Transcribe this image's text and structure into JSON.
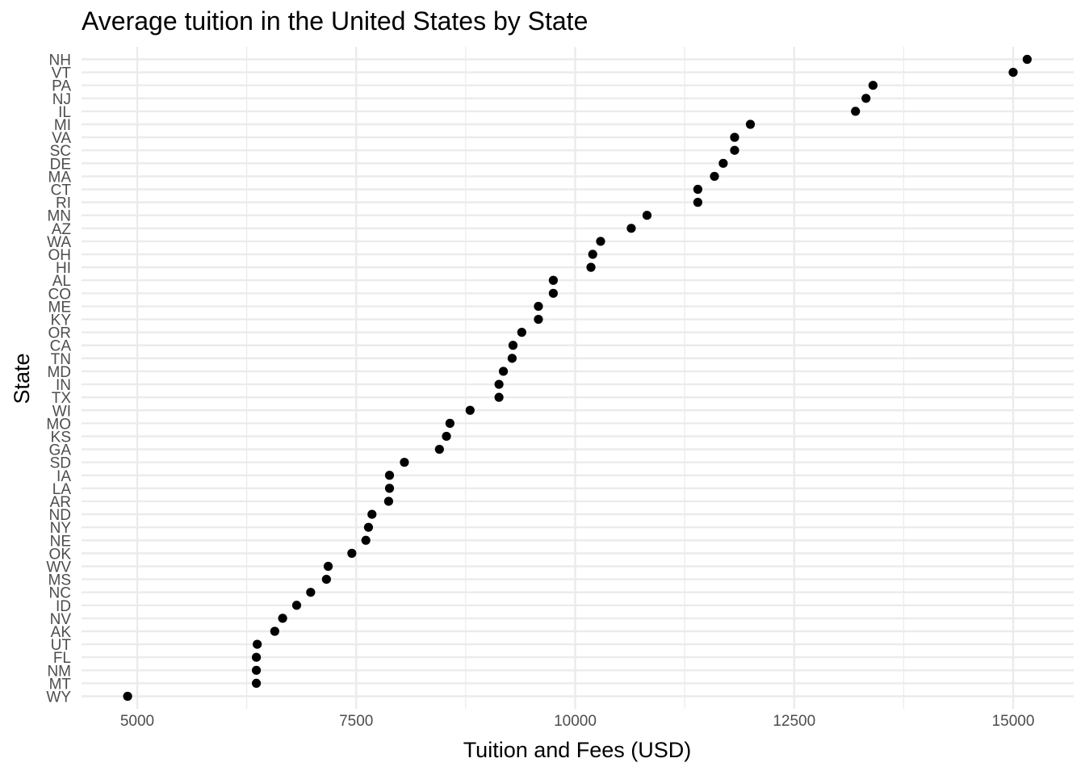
{
  "chart_data": {
    "type": "scatter",
    "title": "Average tuition in the United States by State",
    "xlabel": "Tuition and Fees (USD)",
    "ylabel": "State",
    "xlim": [
      4500,
      15500
    ],
    "x_ticks": [
      5000,
      7500,
      10000,
      12500,
      15000
    ],
    "grid": true,
    "legend": "none",
    "point_color": "#000000",
    "grid_color": "#ebebeb",
    "points": [
      {
        "state": "NH",
        "value": 15160
      },
      {
        "state": "VT",
        "value": 15000
      },
      {
        "state": "PA",
        "value": 13400
      },
      {
        "state": "NJ",
        "value": 13320
      },
      {
        "state": "IL",
        "value": 13200
      },
      {
        "state": "MI",
        "value": 12000
      },
      {
        "state": "VA",
        "value": 11820
      },
      {
        "state": "SC",
        "value": 11820
      },
      {
        "state": "DE",
        "value": 11690
      },
      {
        "state": "MA",
        "value": 11590
      },
      {
        "state": "CT",
        "value": 11400
      },
      {
        "state": "RI",
        "value": 11400
      },
      {
        "state": "MN",
        "value": 10820
      },
      {
        "state": "AZ",
        "value": 10640
      },
      {
        "state": "WA",
        "value": 10290
      },
      {
        "state": "OH",
        "value": 10200
      },
      {
        "state": "HI",
        "value": 10180
      },
      {
        "state": "AL",
        "value": 9750
      },
      {
        "state": "CO",
        "value": 9750
      },
      {
        "state": "ME",
        "value": 9580
      },
      {
        "state": "KY",
        "value": 9580
      },
      {
        "state": "OR",
        "value": 9390
      },
      {
        "state": "CA",
        "value": 9290
      },
      {
        "state": "TN",
        "value": 9280
      },
      {
        "state": "MD",
        "value": 9180
      },
      {
        "state": "IN",
        "value": 9130
      },
      {
        "state": "TX",
        "value": 9130
      },
      {
        "state": "WI",
        "value": 8800
      },
      {
        "state": "MO",
        "value": 8570
      },
      {
        "state": "KS",
        "value": 8530
      },
      {
        "state": "GA",
        "value": 8450
      },
      {
        "state": "SD",
        "value": 8050
      },
      {
        "state": "IA",
        "value": 7880
      },
      {
        "state": "LA",
        "value": 7880
      },
      {
        "state": "AR",
        "value": 7870
      },
      {
        "state": "ND",
        "value": 7680
      },
      {
        "state": "NY",
        "value": 7640
      },
      {
        "state": "NE",
        "value": 7610
      },
      {
        "state": "OK",
        "value": 7450
      },
      {
        "state": "WV",
        "value": 7180
      },
      {
        "state": "MS",
        "value": 7160
      },
      {
        "state": "NC",
        "value": 6980
      },
      {
        "state": "ID",
        "value": 6820
      },
      {
        "state": "NV",
        "value": 6660
      },
      {
        "state": "AK",
        "value": 6570
      },
      {
        "state": "UT",
        "value": 6370
      },
      {
        "state": "FL",
        "value": 6360
      },
      {
        "state": "NM",
        "value": 6360
      },
      {
        "state": "MT",
        "value": 6360
      },
      {
        "state": "WY",
        "value": 4890
      }
    ]
  }
}
